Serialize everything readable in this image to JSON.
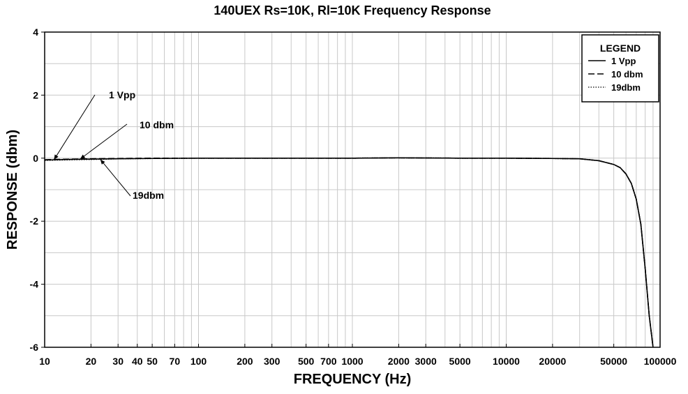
{
  "chart_data": {
    "type": "line",
    "title": "140UEX Rs=10K, Rl=10K Frequency Response",
    "xlabel": "FREQUENCY (Hz)",
    "ylabel": "RESPONSE (dbm)",
    "x_scale": "log",
    "xlim": [
      10,
      100000
    ],
    "ylim": [
      -6,
      4
    ],
    "x_ticks": [
      10,
      20,
      30,
      40,
      50,
      70,
      100,
      200,
      300,
      500,
      700,
      1000,
      2000,
      3000,
      5000,
      10000,
      20000,
      50000,
      100000
    ],
    "x_tick_labels": [
      "10",
      "20",
      "30",
      "40",
      "50",
      "70",
      "100",
      "200",
      "300",
      "500",
      "700",
      "1000",
      "2000",
      "3000",
      "5000",
      "10000",
      "20000",
      "50000",
      "100000"
    ],
    "y_ticks": [
      -6,
      -4,
      -2,
      0,
      2,
      4
    ],
    "y_tick_labels": [
      "-6",
      "-4",
      "-2",
      "0",
      "2",
      "4"
    ],
    "grid": true,
    "legend": {
      "title": "LEGEND",
      "position": "top-right",
      "entries": [
        {
          "label": "1 Vpp",
          "style": "solid"
        },
        {
          "label": "10 dbm",
          "style": "dashed"
        },
        {
          "label": "19dbm",
          "style": "dotted"
        }
      ]
    },
    "series": [
      {
        "name": "1 Vpp",
        "style": "solid",
        "color": "#000000",
        "x": [
          10,
          12,
          15,
          20,
          30,
          50,
          100,
          200,
          500,
          1000,
          2000,
          5000,
          10000,
          20000,
          30000,
          40000,
          50000,
          55000,
          60000,
          65000,
          70000,
          75000,
          80000,
          85000,
          90000
        ],
        "y": [
          -0.06,
          -0.05,
          -0.04,
          -0.03,
          -0.02,
          -0.01,
          0,
          0,
          0,
          0,
          0.01,
          0,
          0,
          -0.01,
          -0.02,
          -0.08,
          -0.2,
          -0.3,
          -0.5,
          -0.8,
          -1.3,
          -2.1,
          -3.5,
          -5.0,
          -6.0
        ]
      },
      {
        "name": "10 dbm",
        "style": "dashed",
        "color": "#000000",
        "x": [
          10,
          12,
          15,
          20,
          30,
          50,
          100,
          200,
          500,
          1000,
          2000,
          5000,
          10000,
          20000,
          30000,
          40000,
          50000,
          55000,
          60000,
          65000,
          70000,
          75000,
          80000,
          85000,
          90000
        ],
        "y": [
          -0.05,
          -0.04,
          -0.03,
          -0.02,
          -0.01,
          0,
          0,
          0,
          0,
          0,
          0.01,
          0,
          0,
          -0.01,
          -0.02,
          -0.08,
          -0.2,
          -0.3,
          -0.5,
          -0.8,
          -1.3,
          -2.1,
          -3.5,
          -5.0,
          -6.0
        ]
      },
      {
        "name": "19dbm",
        "style": "dotted",
        "color": "#000000",
        "x": [
          10,
          12,
          15,
          20,
          30,
          50,
          100,
          200,
          500,
          1000,
          2000,
          5000,
          10000,
          20000,
          30000,
          40000,
          50000,
          55000,
          60000,
          65000,
          70000,
          75000,
          80000,
          85000,
          90000
        ],
        "y": [
          -0.07,
          -0.06,
          -0.05,
          -0.04,
          -0.02,
          -0.01,
          0,
          0,
          0,
          0,
          0.01,
          0,
          0,
          -0.01,
          -0.02,
          -0.08,
          -0.2,
          -0.3,
          -0.5,
          -0.8,
          -1.3,
          -2.1,
          -3.5,
          -5.0,
          -6.0
        ]
      }
    ],
    "annotations": [
      {
        "text": "1 Vpp",
        "x": 11.5,
        "y": -0.05
      },
      {
        "text": "10 dbm",
        "x": 17,
        "y": -0.03
      },
      {
        "text": "19dbm",
        "x": 23,
        "y": -0.04
      }
    ]
  }
}
